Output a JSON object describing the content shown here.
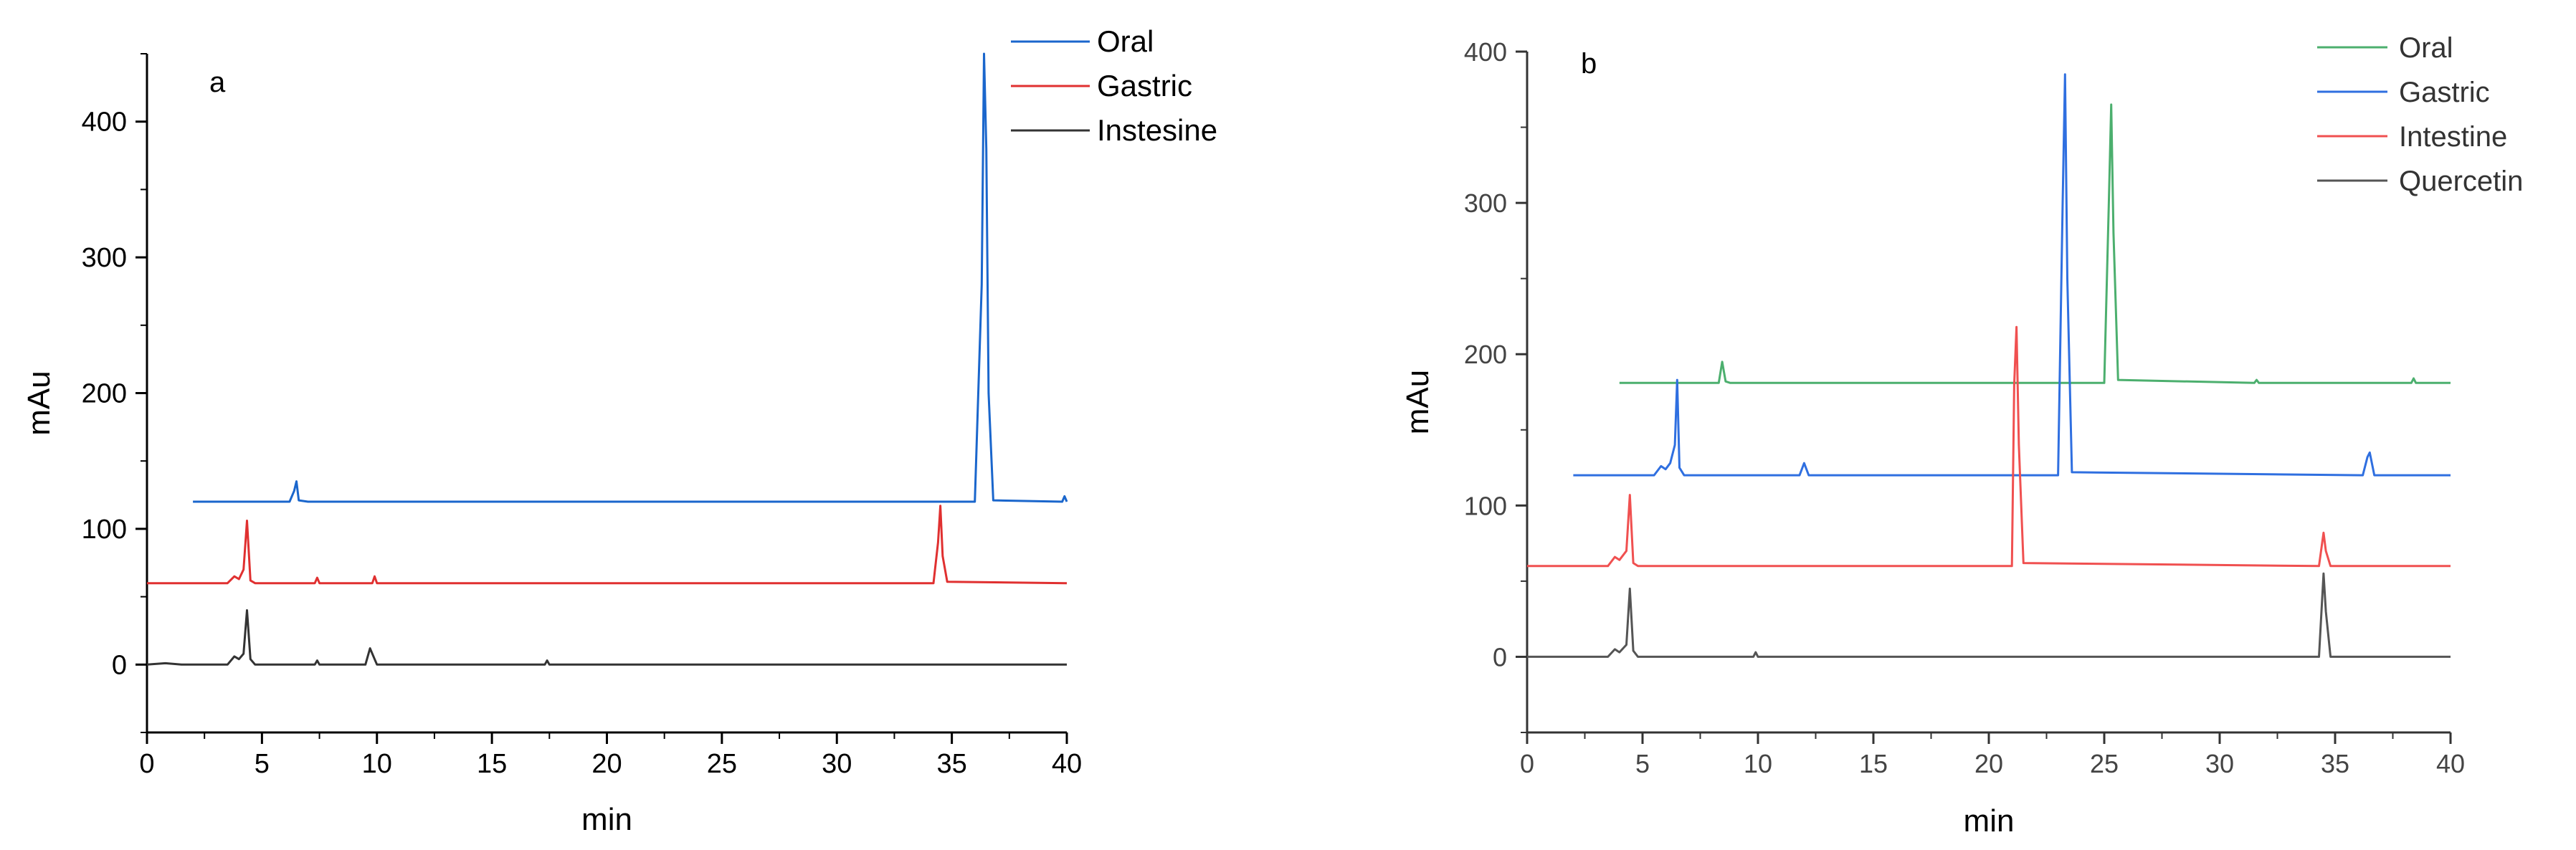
{
  "chart_data": [
    {
      "panel": "a",
      "type": "line",
      "title": "",
      "xlabel": "min",
      "ylabel": "mAu",
      "xlim": [
        0,
        40
      ],
      "ylim": [
        -50,
        450
      ],
      "xticks": [
        0,
        5,
        10,
        15,
        20,
        25,
        30,
        35,
        40
      ],
      "yticks": [
        0,
        100,
        200,
        300,
        400
      ],
      "legend_position": "top-right",
      "series": [
        {
          "name": "Oral",
          "color": "#1a66cc",
          "x": [
            2.0,
            6.2,
            6.4,
            6.5,
            6.6,
            7.0,
            36.0,
            36.3,
            36.4,
            36.5,
            36.6,
            36.8,
            39.8,
            39.9,
            40.0
          ],
          "y": [
            120,
            120,
            128,
            135,
            121,
            120,
            120,
            280,
            450,
            380,
            200,
            121,
            120,
            124,
            120
          ]
        },
        {
          "name": "Gastric",
          "color": "#e03030",
          "x": [
            0.0,
            3.5,
            3.8,
            4.0,
            4.2,
            4.35,
            4.5,
            4.7,
            7.3,
            7.4,
            7.5,
            9.8,
            9.9,
            10.0,
            34.2,
            34.4,
            34.5,
            34.6,
            34.8,
            40.0
          ],
          "y": [
            60,
            60,
            65,
            63,
            70,
            106,
            62,
            60,
            60,
            64,
            60,
            60,
            65,
            60,
            60,
            90,
            117,
            80,
            61,
            60
          ]
        },
        {
          "name": "Instesine",
          "color": "#333333",
          "x": [
            0.0,
            0.8,
            1.5,
            3.5,
            3.8,
            4.0,
            4.2,
            4.35,
            4.5,
            4.7,
            7.3,
            7.4,
            7.5,
            9.5,
            9.7,
            9.9,
            10.0,
            17.3,
            17.4,
            17.5,
            40.0
          ],
          "y": [
            0,
            1,
            0,
            0,
            6,
            4,
            8,
            40,
            4,
            0,
            0,
            3,
            0,
            0,
            12,
            4,
            0,
            0,
            3,
            0,
            0
          ]
        }
      ]
    },
    {
      "panel": "b",
      "type": "line",
      "title": "",
      "xlabel": "min",
      "ylabel": "mAu",
      "xlim": [
        0,
        40
      ],
      "ylim": [
        -50,
        400
      ],
      "xticks": [
        0,
        5,
        10,
        15,
        20,
        25,
        30,
        35,
        40
      ],
      "yticks": [
        0,
        100,
        200,
        300,
        400
      ],
      "legend_position": "top-right",
      "series": [
        {
          "name": "Oral",
          "color": "#4caf6e",
          "x": [
            4.0,
            8.3,
            8.45,
            8.6,
            8.8,
            25.0,
            25.2,
            25.3,
            25.4,
            25.6,
            31.5,
            31.6,
            31.7,
            38.3,
            38.4,
            38.5,
            40.0
          ],
          "y": [
            181,
            181,
            195,
            182,
            181,
            181,
            300,
            365,
            280,
            183,
            181,
            183,
            181,
            181,
            184,
            181,
            181
          ]
        },
        {
          "name": "Gastric",
          "color": "#2f6fe0",
          "x": [
            2.0,
            5.5,
            5.8,
            6.0,
            6.2,
            6.4,
            6.5,
            6.6,
            6.8,
            11.8,
            12.0,
            12.2,
            23.0,
            23.2,
            23.3,
            23.4,
            23.6,
            36.2,
            36.4,
            36.5,
            36.7,
            40.0
          ],
          "y": [
            120,
            120,
            126,
            124,
            128,
            140,
            183,
            125,
            120,
            120,
            128,
            120,
            120,
            300,
            385,
            250,
            122,
            120,
            132,
            135,
            120,
            120
          ]
        },
        {
          "name": "Intestine",
          "color": "#f05050",
          "x": [
            0.0,
            3.5,
            3.8,
            4.0,
            4.3,
            4.45,
            4.6,
            4.8,
            21.0,
            21.1,
            21.2,
            21.3,
            21.5,
            34.3,
            34.5,
            34.6,
            34.8,
            40.0
          ],
          "y": [
            60,
            60,
            66,
            64,
            70,
            107,
            62,
            60,
            60,
            180,
            218,
            140,
            62,
            60,
            82,
            70,
            60,
            60
          ]
        },
        {
          "name": "Quercetin",
          "color": "#555555",
          "x": [
            0.0,
            3.5,
            3.8,
            4.0,
            4.3,
            4.45,
            4.6,
            4.8,
            9.8,
            9.9,
            10.0,
            34.3,
            34.5,
            34.6,
            34.8,
            40.0
          ],
          "y": [
            0,
            0,
            5,
            3,
            8,
            45,
            4,
            0,
            0,
            3,
            0,
            0,
            55,
            30,
            0,
            0
          ]
        }
      ]
    }
  ]
}
